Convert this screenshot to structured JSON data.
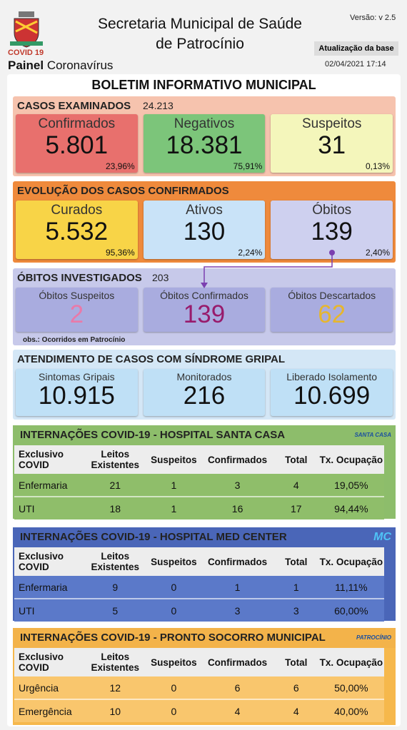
{
  "header": {
    "covid_label": "COVID 19",
    "panel_bold": "Painel",
    "panel_rest": "Coronavírus",
    "org_line1": "Secretaria Municipal de Saúde",
    "org_line2": "de Patrocínio",
    "version": "Versão: v 2.5",
    "update_label": "Atualização da base",
    "update_date": "02/04/2021 17:14"
  },
  "bulletin_title": "BOLETIM INFORMATIVO MUNICIPAL",
  "examined": {
    "title": "CASOS EXAMINADOS",
    "total": "24.213",
    "cards": [
      {
        "label": "Confirmados",
        "value": "5.801",
        "pct": "23,96%"
      },
      {
        "label": "Negativos",
        "value": "18.381",
        "pct": "75,91%"
      },
      {
        "label": "Suspeitos",
        "value": "31",
        "pct": "0,13%"
      }
    ]
  },
  "evolution": {
    "title": "EVOLUÇÃO DOS CASOS CONFIRMADOS",
    "cards": [
      {
        "label": "Curados",
        "value": "5.532",
        "pct": "95,36%"
      },
      {
        "label": "Ativos",
        "value": "130",
        "pct": "2,24%"
      },
      {
        "label": "Óbitos",
        "value": "139",
        "pct": "2,40%"
      }
    ]
  },
  "deaths": {
    "title": "ÓBITOS INVESTIGADOS",
    "total": "203",
    "cards": [
      {
        "label": "Óbitos Suspeitos",
        "value": "2"
      },
      {
        "label": "Óbitos Confirmados",
        "value": "139"
      },
      {
        "label": "Óbitos Descartados",
        "value": "62"
      }
    ],
    "note": "obs.: Ocorridos em Patrocínio"
  },
  "flu": {
    "title": "ATENDIMENTO DE CASOS COM SÍNDROME GRIPAL",
    "cards": [
      {
        "label": "Sintomas Gripais",
        "value": "10.915"
      },
      {
        "label": "Monitorados",
        "value": "216"
      },
      {
        "label": "Liberado Isolamento",
        "value": "10.699"
      }
    ]
  },
  "hospitals": [
    {
      "title": "INTERNAÇÕES COVID-19 - HOSPITAL SANTA CASA",
      "logo": "SANTA CASA",
      "columns": [
        "Exclusivo COVID",
        "Leitos Existentes",
        "Suspeitos",
        "Confirmados",
        "Total",
        "Tx. Ocupação"
      ],
      "rows": [
        [
          "Enfermaria",
          "21",
          "1",
          "3",
          "4",
          "19,05%"
        ],
        [
          "UTI",
          "18",
          "1",
          "16",
          "17",
          "94,44%"
        ]
      ]
    },
    {
      "title": "INTERNAÇÕES COVID-19 - HOSPITAL MED CENTER",
      "logo": "MC",
      "columns": [
        "Exclusivo COVID",
        "Leitos Existentes",
        "Suspeitos",
        "Confirmados",
        "Total",
        "Tx. Ocupação"
      ],
      "rows": [
        [
          "Enfermaria",
          "9",
          "0",
          "1",
          "1",
          "11,11%"
        ],
        [
          "UTI",
          "5",
          "0",
          "3",
          "3",
          "60,00%"
        ]
      ]
    },
    {
      "title": "INTERNAÇÕES COVID-19 - PRONTO SOCORRO MUNICIPAL",
      "logo": "PATROCÍNIO",
      "columns": [
        "Exclusivo COVID",
        "Leitos Existentes",
        "Suspeitos",
        "Confirmados",
        "Total",
        "Tx. Ocupação"
      ],
      "rows": [
        [
          "Urgência",
          "12",
          "0",
          "6",
          "6",
          "50,00%"
        ],
        [
          "Emergência",
          "10",
          "0",
          "4",
          "4",
          "40,00%"
        ]
      ]
    }
  ]
}
